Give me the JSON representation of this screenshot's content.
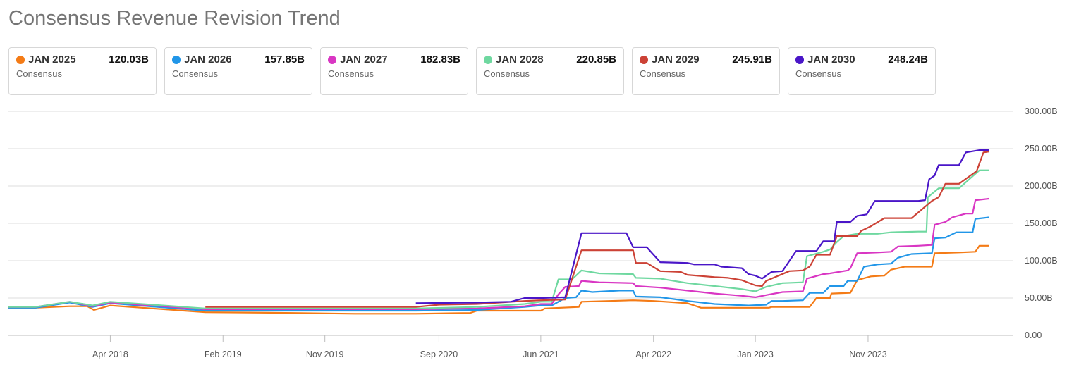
{
  "page": {
    "title": "Consensus Revenue Revision Trend"
  },
  "cards": [
    {
      "label": "JAN 2025",
      "value": "120.03B",
      "sub": "Consensus",
      "color": "#f47b16"
    },
    {
      "label": "JAN 2026",
      "value": "157.85B",
      "sub": "Consensus",
      "color": "#2196e8"
    },
    {
      "label": "JAN 2027",
      "value": "182.83B",
      "sub": "Consensus",
      "color": "#d936c3"
    },
    {
      "label": "JAN 2028",
      "value": "220.85B",
      "sub": "Consensus",
      "color": "#6fd8a0"
    },
    {
      "label": "JAN 2029",
      "value": "245.91B",
      "sub": "Consensus",
      "color": "#cc4236"
    },
    {
      "label": "JAN 2030",
      "value": "248.24B",
      "sub": "Consensus",
      "color": "#4a16c8"
    }
  ],
  "chart_data": {
    "type": "line",
    "title": "Consensus Revenue Revision Trend",
    "xlabel": "",
    "ylabel": "",
    "x_range": [
      2017.5,
      2024.9
    ],
    "ylim": [
      0,
      300
    ],
    "y_ticks": [
      0,
      50,
      100,
      150,
      200,
      250,
      300
    ],
    "y_tick_labels": [
      "0.00",
      "50.00B",
      "100.00B",
      "150.00B",
      "200.00B",
      "250.00B",
      "300.00B"
    ],
    "x_ticks": [
      {
        "label": "Apr 2018",
        "x": 2018.25
      },
      {
        "label": "Feb 2019",
        "x": 2019.08
      },
      {
        "label": "Nov 2019",
        "x": 2019.83
      },
      {
        "label": "Sep 2020",
        "x": 2020.67
      },
      {
        "label": "Jun 2021",
        "x": 2021.42
      },
      {
        "label": "Apr 2022",
        "x": 2022.25
      },
      {
        "label": "Jan 2023",
        "x": 2023.0
      },
      {
        "label": "Nov 2023",
        "x": 2023.83
      }
    ],
    "grid": true,
    "series": [
      {
        "name": "JAN 2025",
        "color": "#f47b16",
        "points": [
          [
            2017.5,
            37
          ],
          [
            2017.7,
            37
          ],
          [
            2017.95,
            39
          ],
          [
            2018.08,
            39
          ],
          [
            2018.13,
            34
          ],
          [
            2018.25,
            40
          ],
          [
            2018.95,
            31
          ],
          [
            2019.6,
            30
          ],
          [
            2020.05,
            29
          ],
          [
            2020.5,
            29
          ],
          [
            2020.9,
            30
          ],
          [
            2020.95,
            33
          ],
          [
            2021.25,
            33
          ],
          [
            2021.42,
            33
          ],
          [
            2021.45,
            36
          ],
          [
            2021.7,
            38
          ],
          [
            2021.72,
            45
          ],
          [
            2022.1,
            47
          ],
          [
            2022.25,
            46
          ],
          [
            2022.5,
            43
          ],
          [
            2022.6,
            37
          ],
          [
            2022.9,
            37
          ],
          [
            2023.1,
            37
          ],
          [
            2023.12,
            38
          ],
          [
            2023.4,
            38
          ],
          [
            2023.45,
            50
          ],
          [
            2023.55,
            50
          ],
          [
            2023.56,
            56
          ],
          [
            2023.7,
            57
          ],
          [
            2023.75,
            74
          ],
          [
            2023.85,
            79
          ],
          [
            2023.95,
            80
          ],
          [
            2024.0,
            88
          ],
          [
            2024.1,
            92
          ],
          [
            2024.3,
            92
          ],
          [
            2024.32,
            110
          ],
          [
            2024.5,
            111
          ],
          [
            2024.62,
            112
          ],
          [
            2024.65,
            120
          ],
          [
            2024.72,
            120
          ]
        ]
      },
      {
        "name": "JAN 2026",
        "color": "#2196e8",
        "points": [
          [
            2017.5,
            37
          ],
          [
            2017.7,
            37
          ],
          [
            2017.95,
            44
          ],
          [
            2018.12,
            38
          ],
          [
            2018.25,
            43
          ],
          [
            2018.95,
            33
          ],
          [
            2019.6,
            33
          ],
          [
            2020.5,
            33
          ],
          [
            2020.95,
            34
          ],
          [
            2021.3,
            38
          ],
          [
            2021.42,
            40
          ],
          [
            2021.5,
            40
          ],
          [
            2021.6,
            50
          ],
          [
            2021.68,
            51
          ],
          [
            2021.72,
            60
          ],
          [
            2021.8,
            58
          ],
          [
            2022.0,
            60
          ],
          [
            2022.1,
            60
          ],
          [
            2022.12,
            52
          ],
          [
            2022.3,
            51
          ],
          [
            2022.5,
            46
          ],
          [
            2022.7,
            42
          ],
          [
            2022.95,
            40
          ],
          [
            2023.08,
            41
          ],
          [
            2023.12,
            46
          ],
          [
            2023.2,
            46
          ],
          [
            2023.35,
            47
          ],
          [
            2023.4,
            57
          ],
          [
            2023.5,
            57
          ],
          [
            2023.55,
            66
          ],
          [
            2023.65,
            66
          ],
          [
            2023.68,
            73
          ],
          [
            2023.75,
            73
          ],
          [
            2023.8,
            92
          ],
          [
            2023.9,
            95
          ],
          [
            2024.0,
            96
          ],
          [
            2024.05,
            104
          ],
          [
            2024.15,
            109
          ],
          [
            2024.3,
            110
          ],
          [
            2024.32,
            130
          ],
          [
            2024.4,
            131
          ],
          [
            2024.48,
            138
          ],
          [
            2024.6,
            138
          ],
          [
            2024.62,
            156
          ],
          [
            2024.72,
            158
          ]
        ]
      },
      {
        "name": "JAN 2027",
        "color": "#d936c3",
        "points": [
          [
            2017.5,
            38
          ],
          [
            2017.7,
            38
          ],
          [
            2017.95,
            45
          ],
          [
            2018.12,
            39
          ],
          [
            2018.25,
            44
          ],
          [
            2018.95,
            35
          ],
          [
            2019.6,
            35
          ],
          [
            2020.5,
            35
          ],
          [
            2020.95,
            36
          ],
          [
            2021.3,
            39
          ],
          [
            2021.42,
            42
          ],
          [
            2021.5,
            42
          ],
          [
            2021.55,
            55
          ],
          [
            2021.6,
            65
          ],
          [
            2021.7,
            66
          ],
          [
            2021.72,
            73
          ],
          [
            2021.85,
            71
          ],
          [
            2022.1,
            70
          ],
          [
            2022.12,
            66
          ],
          [
            2022.3,
            64
          ],
          [
            2022.5,
            60
          ],
          [
            2022.7,
            56
          ],
          [
            2022.9,
            53
          ],
          [
            2023.0,
            51
          ],
          [
            2023.08,
            54
          ],
          [
            2023.2,
            58
          ],
          [
            2023.35,
            59
          ],
          [
            2023.38,
            76
          ],
          [
            2023.5,
            82
          ],
          [
            2023.55,
            83
          ],
          [
            2023.68,
            87
          ],
          [
            2023.7,
            90
          ],
          [
            2023.75,
            110
          ],
          [
            2023.9,
            111
          ],
          [
            2024.0,
            112
          ],
          [
            2024.05,
            119
          ],
          [
            2024.2,
            120
          ],
          [
            2024.3,
            121
          ],
          [
            2024.32,
            148
          ],
          [
            2024.4,
            152
          ],
          [
            2024.45,
            158
          ],
          [
            2024.55,
            163
          ],
          [
            2024.6,
            163
          ],
          [
            2024.62,
            181
          ],
          [
            2024.72,
            183
          ]
        ]
      },
      {
        "name": "JAN 2028",
        "color": "#6fd8a0",
        "points": [
          [
            2017.5,
            38
          ],
          [
            2017.7,
            38
          ],
          [
            2017.95,
            45
          ],
          [
            2018.12,
            40
          ],
          [
            2018.25,
            45
          ],
          [
            2018.95,
            36
          ],
          [
            2019.6,
            36
          ],
          [
            2020.5,
            36
          ],
          [
            2020.95,
            38
          ],
          [
            2021.3,
            42
          ],
          [
            2021.42,
            45
          ],
          [
            2021.5,
            45
          ],
          [
            2021.55,
            75
          ],
          [
            2021.65,
            75
          ],
          [
            2021.72,
            87
          ],
          [
            2021.85,
            83
          ],
          [
            2022.1,
            82
          ],
          [
            2022.12,
            77
          ],
          [
            2022.3,
            76
          ],
          [
            2022.5,
            70
          ],
          [
            2022.7,
            66
          ],
          [
            2022.9,
            62
          ],
          [
            2023.0,
            59
          ],
          [
            2023.08,
            65
          ],
          [
            2023.2,
            70
          ],
          [
            2023.35,
            71
          ],
          [
            2023.38,
            106
          ],
          [
            2023.5,
            112
          ],
          [
            2023.55,
            115
          ],
          [
            2023.6,
            125
          ],
          [
            2023.65,
            133
          ],
          [
            2023.75,
            136
          ],
          [
            2023.9,
            136
          ],
          [
            2024.0,
            138
          ],
          [
            2024.2,
            139
          ],
          [
            2024.26,
            139
          ],
          [
            2024.27,
            185
          ],
          [
            2024.35,
            197
          ],
          [
            2024.5,
            197
          ],
          [
            2024.6,
            213
          ],
          [
            2024.65,
            221
          ],
          [
            2024.72,
            221
          ]
        ]
      },
      {
        "name": "JAN 2029",
        "color": "#cc4236",
        "points": [
          [
            2018.95,
            38
          ],
          [
            2019.6,
            38
          ],
          [
            2020.5,
            38
          ],
          [
            2020.67,
            41
          ],
          [
            2020.95,
            42
          ],
          [
            2021.3,
            46
          ],
          [
            2021.42,
            47
          ],
          [
            2021.6,
            48
          ],
          [
            2021.72,
            114
          ],
          [
            2021.85,
            114
          ],
          [
            2022.0,
            114
          ],
          [
            2022.1,
            114
          ],
          [
            2022.12,
            97
          ],
          [
            2022.2,
            97
          ],
          [
            2022.3,
            86
          ],
          [
            2022.45,
            85
          ],
          [
            2022.5,
            81
          ],
          [
            2022.7,
            78
          ],
          [
            2022.8,
            77
          ],
          [
            2022.9,
            74
          ],
          [
            2023.0,
            67
          ],
          [
            2023.05,
            66
          ],
          [
            2023.08,
            73
          ],
          [
            2023.25,
            86
          ],
          [
            2023.35,
            87
          ],
          [
            2023.4,
            92
          ],
          [
            2023.45,
            108
          ],
          [
            2023.55,
            108
          ],
          [
            2023.6,
            133
          ],
          [
            2023.75,
            133
          ],
          [
            2023.78,
            140
          ],
          [
            2023.85,
            146
          ],
          [
            2023.95,
            157
          ],
          [
            2024.15,
            157
          ],
          [
            2024.3,
            180
          ],
          [
            2024.35,
            185
          ],
          [
            2024.4,
            203
          ],
          [
            2024.5,
            203
          ],
          [
            2024.6,
            216
          ],
          [
            2024.63,
            220
          ],
          [
            2024.68,
            245
          ],
          [
            2024.72,
            246
          ]
        ]
      },
      {
        "name": "JAN 2030",
        "color": "#4a16c8",
        "points": [
          [
            2020.5,
            43
          ],
          [
            2020.95,
            44
          ],
          [
            2021.2,
            45
          ],
          [
            2021.3,
            50
          ],
          [
            2021.42,
            50
          ],
          [
            2021.6,
            51
          ],
          [
            2021.72,
            137
          ],
          [
            2021.85,
            137
          ],
          [
            2022.05,
            137
          ],
          [
            2022.1,
            118
          ],
          [
            2022.2,
            118
          ],
          [
            2022.3,
            98
          ],
          [
            2022.5,
            97
          ],
          [
            2022.55,
            95
          ],
          [
            2022.7,
            95
          ],
          [
            2022.75,
            92
          ],
          [
            2022.9,
            90
          ],
          [
            2022.95,
            82
          ],
          [
            2023.0,
            80
          ],
          [
            2023.05,
            76
          ],
          [
            2023.12,
            85
          ],
          [
            2023.2,
            86
          ],
          [
            2023.3,
            113
          ],
          [
            2023.45,
            113
          ],
          [
            2023.5,
            126
          ],
          [
            2023.58,
            126
          ],
          [
            2023.6,
            152
          ],
          [
            2023.7,
            152
          ],
          [
            2023.75,
            160
          ],
          [
            2023.82,
            162
          ],
          [
            2023.88,
            180
          ],
          [
            2024.1,
            180
          ],
          [
            2024.2,
            180
          ],
          [
            2024.25,
            181
          ],
          [
            2024.28,
            209
          ],
          [
            2024.32,
            214
          ],
          [
            2024.35,
            228
          ],
          [
            2024.5,
            228
          ],
          [
            2024.55,
            245
          ],
          [
            2024.65,
            248
          ],
          [
            2024.72,
            248
          ]
        ]
      }
    ]
  }
}
